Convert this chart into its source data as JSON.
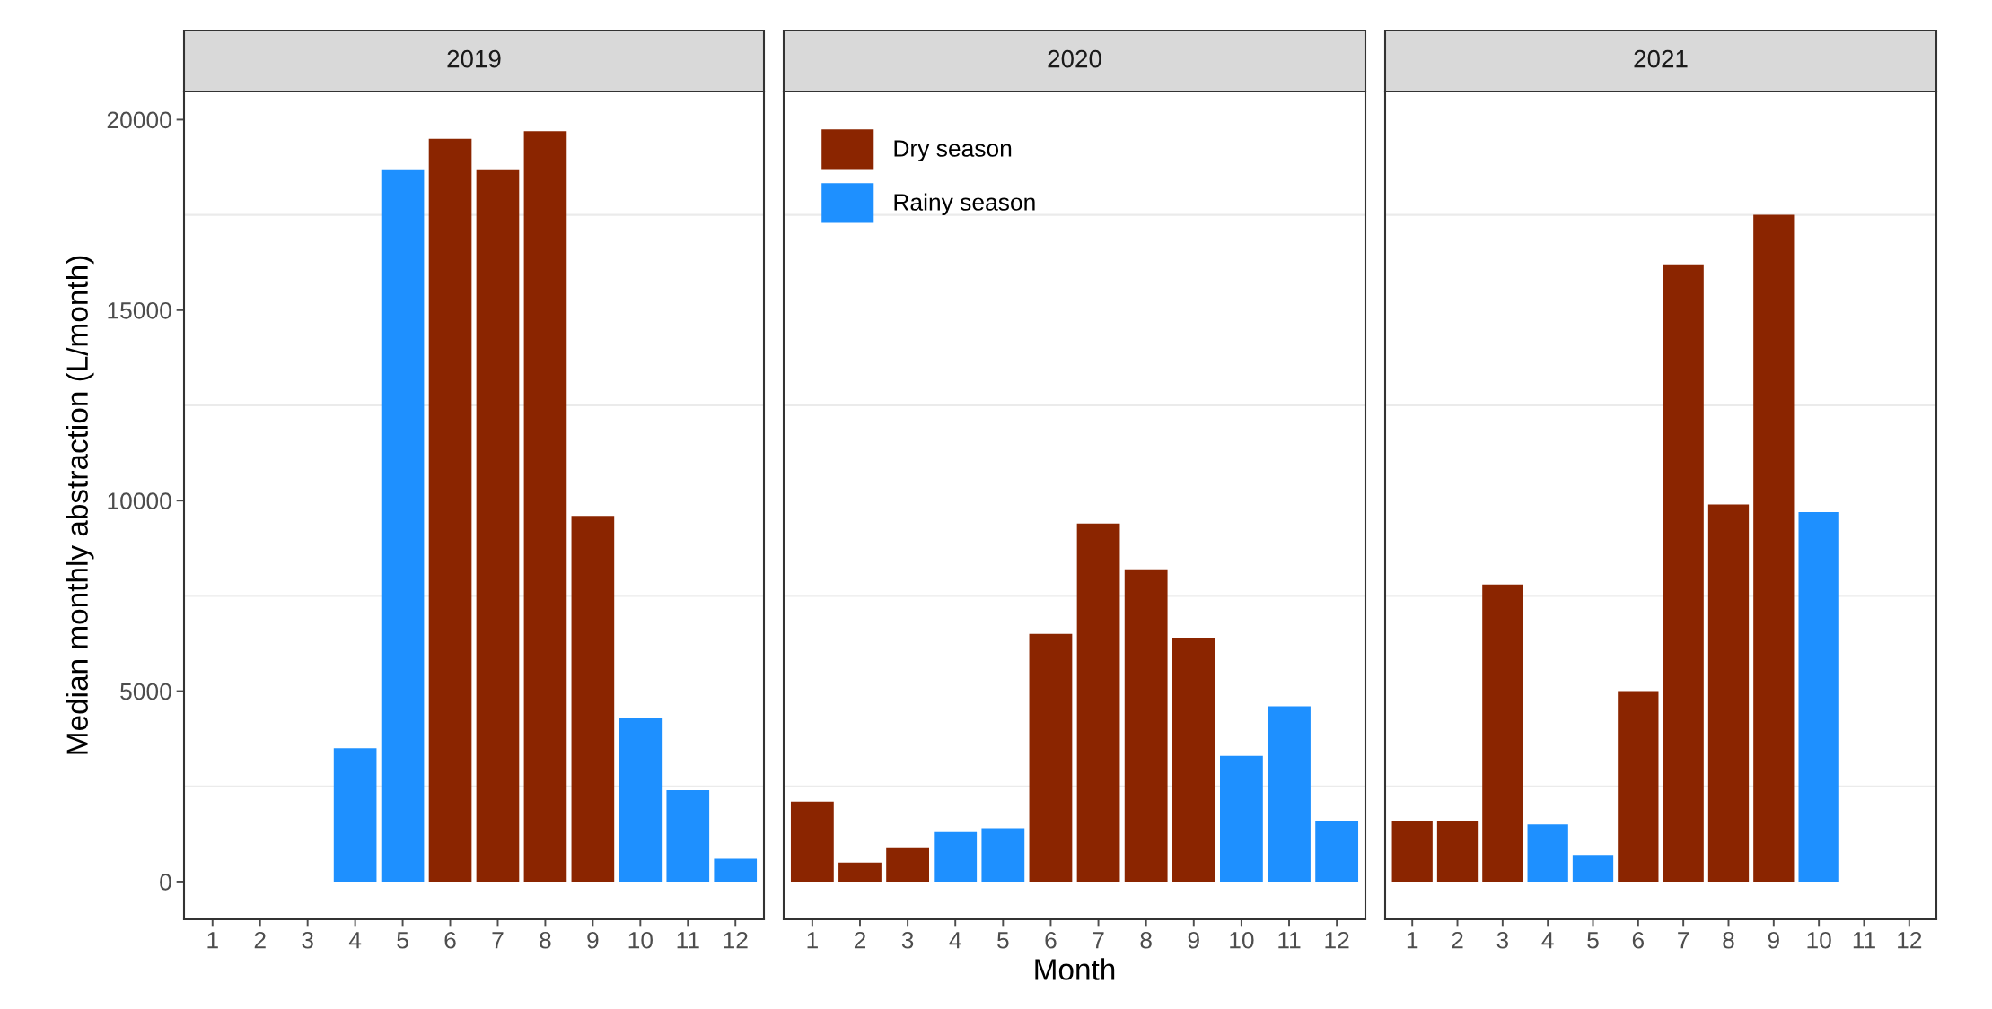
{
  "chart_data": [
    {
      "type": "bar",
      "title": "2019",
      "ylabel": "Median monthly abstraction (L/month)",
      "categories": [
        "1",
        "2",
        "3",
        "4",
        "5",
        "6",
        "7",
        "8",
        "9",
        "10",
        "11",
        "12"
      ],
      "ylim": [
        -990,
        20740
      ],
      "yticks": [
        0,
        5000,
        10000,
        15000,
        20000
      ],
      "grid": "y",
      "legend": false,
      "series": [
        {
          "color": "#8b2500",
          "values": [
            null,
            null,
            null,
            null,
            null,
            19500,
            18700,
            19700,
            9600,
            null,
            null,
            null
          ]
        },
        {
          "color": "#1e90ff",
          "values": [
            null,
            null,
            null,
            3500,
            18700,
            null,
            null,
            null,
            null,
            4300,
            2400,
            600
          ]
        }
      ]
    },
    {
      "type": "bar",
      "title": "2020",
      "xlabel": "Month",
      "categories": [
        "1",
        "2",
        "3",
        "4",
        "5",
        "6",
        "7",
        "8",
        "9",
        "10",
        "11",
        "12"
      ],
      "ylim": [
        -990,
        20740
      ],
      "yticks": [
        0,
        5000,
        10000,
        15000,
        20000
      ],
      "tick_labels": "x",
      "grid": "y",
      "legend": "top left",
      "series": [
        {
          "name": "Dry season",
          "color": "#8b2500",
          "values": [
            2100,
            500,
            900,
            null,
            null,
            6500,
            9400,
            8200,
            6400,
            null,
            null,
            null
          ]
        },
        {
          "name": "Rainy season",
          "color": "#1e90ff",
          "values": [
            null,
            null,
            null,
            1300,
            1400,
            null,
            null,
            null,
            null,
            3300,
            4600,
            1600
          ]
        }
      ]
    },
    {
      "type": "bar",
      "title": "2021",
      "categories": [
        "1",
        "2",
        "3",
        "4",
        "5",
        "6",
        "7",
        "8",
        "9",
        "10",
        "11",
        "12"
      ],
      "ylim": [
        -990,
        20740
      ],
      "yticks": [
        0,
        5000,
        10000,
        15000,
        20000
      ],
      "tick_labels": "x",
      "grid": "y",
      "legend": false,
      "series": [
        {
          "color": "#8b2500",
          "values": [
            1600,
            1600,
            7800,
            null,
            null,
            5000,
            16200,
            9900,
            17500,
            null,
            null,
            null
          ]
        },
        {
          "color": "#1e90ff",
          "values": [
            null,
            null,
            null,
            1500,
            700,
            null,
            null,
            null,
            null,
            9700,
            null,
            null
          ]
        }
      ]
    }
  ]
}
